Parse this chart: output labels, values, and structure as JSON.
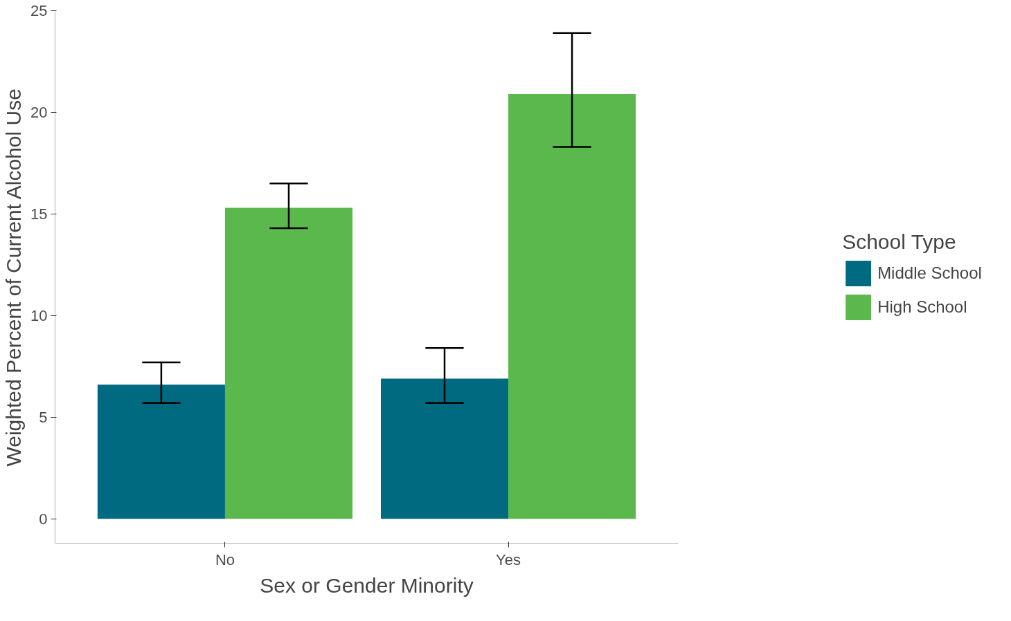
{
  "chart_data": {
    "type": "bar",
    "xlabel": "Sex or Gender Minority",
    "ylabel": "Weighted Percent of Current Alcohol Use",
    "legend_title": "School Type",
    "categories": [
      "No",
      "Yes"
    ],
    "series": [
      {
        "name": "Middle School",
        "color": "#006a80",
        "values": [
          6.6,
          6.9
        ],
        "errors": [
          [
            5.7,
            7.7
          ],
          [
            5.7,
            8.4
          ]
        ]
      },
      {
        "name": "High School",
        "color": "#5bb84c",
        "values": [
          15.3,
          20.9
        ],
        "errors": [
          [
            14.3,
            16.5
          ],
          [
            18.3,
            23.9
          ]
        ]
      }
    ],
    "ylim": [
      -1.2,
      25
    ],
    "yticks": [
      0,
      5,
      10,
      15,
      20,
      25
    ],
    "grid": false,
    "legend": "right"
  }
}
